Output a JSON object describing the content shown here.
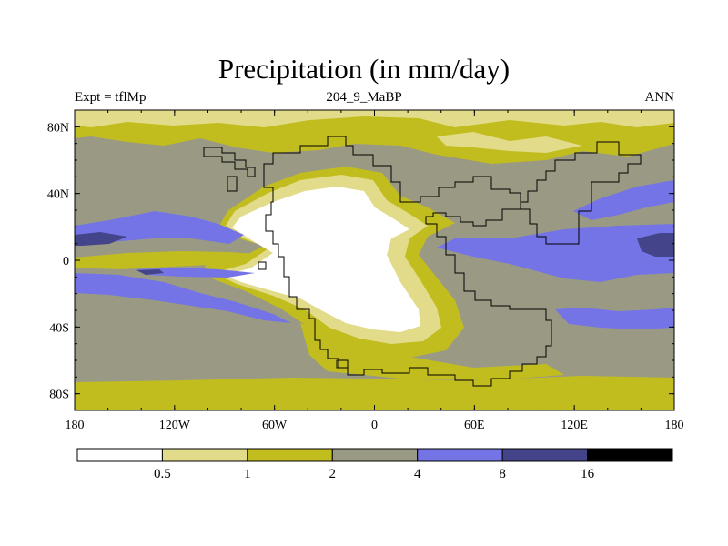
{
  "chart_data": {
    "type": "heatmap",
    "title": "Precipitation (in mm/day)",
    "subtitle_left": "Expt = tflMp",
    "subtitle_center": "204_9_MaBP",
    "subtitle_right": "ANN",
    "variable": "Precipitation",
    "units": "mm/day",
    "x_ticks": [
      "180",
      "120W",
      "60W",
      "0",
      "60E",
      "120E",
      "180"
    ],
    "x_tick_values": [
      -180,
      -120,
      -60,
      0,
      60,
      120,
      180
    ],
    "y_ticks": [
      "80N",
      "40N",
      "0",
      "40S",
      "80S"
    ],
    "y_tick_values": [
      80,
      40,
      0,
      -40,
      -80
    ],
    "xlim": [
      -180,
      180
    ],
    "ylim": [
      -90,
      90
    ],
    "levels": [
      0.5,
      1,
      2,
      4,
      8,
      16
    ],
    "level_labels": [
      "0.5",
      "1",
      "2",
      "4",
      "8",
      "16"
    ],
    "colors": [
      "#ffffff",
      "#e2dc8a",
      "#c2bd1e",
      "#9a9a84",
      "#7474e6",
      "#44448a",
      "#000000"
    ],
    "land_outline_color": "#000000"
  }
}
